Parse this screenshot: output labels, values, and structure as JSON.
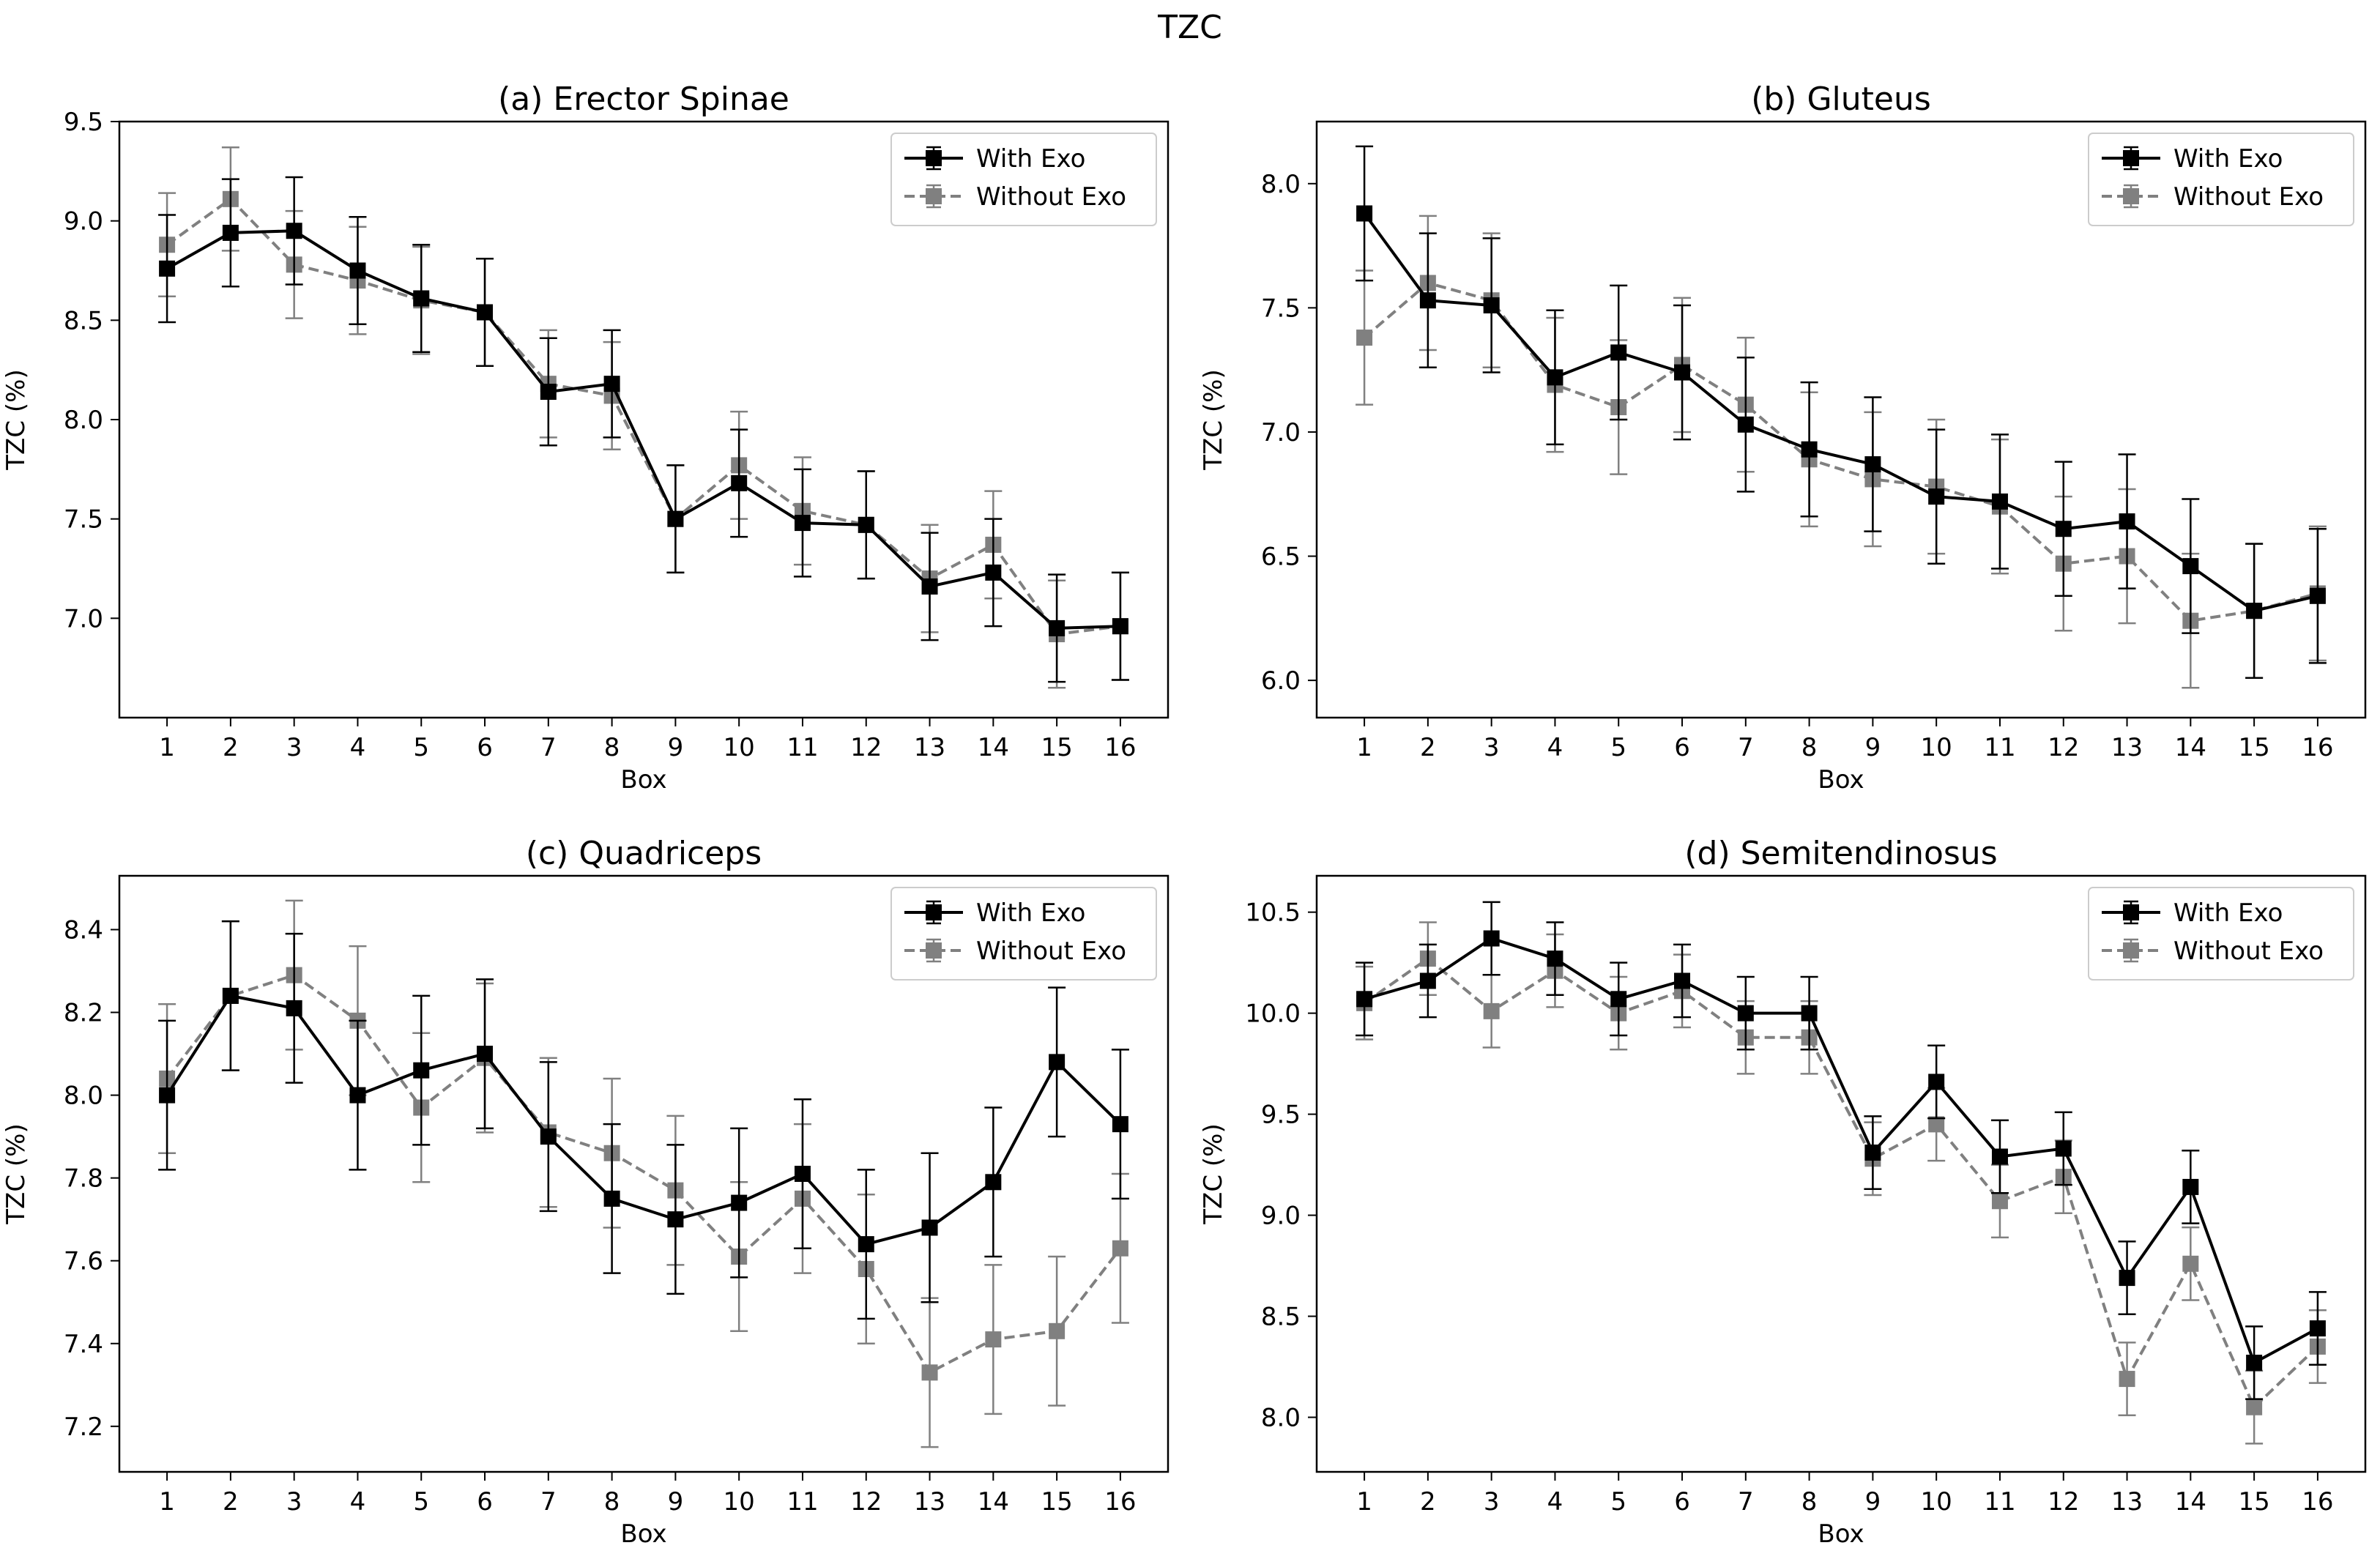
{
  "suptitle": "TZC",
  "colors": {
    "with_exo": "#000000",
    "without_exo": "#808080"
  },
  "chart_data": [
    {
      "type": "line",
      "panel": "(a)",
      "title": "(a)  Erector Spinae",
      "xlabel": "Box",
      "ylabel": "TZC (%)",
      "ylim": [
        6.5,
        9.5
      ],
      "yticks": [
        7.0,
        7.5,
        8.0,
        8.5,
        9.0,
        9.5
      ],
      "ytick_labels": [
        "7.0",
        "7.5",
        "8.0",
        "8.5",
        "9.0",
        "9.5"
      ],
      "x": [
        1,
        2,
        3,
        4,
        5,
        6,
        7,
        8,
        9,
        10,
        11,
        12,
        13,
        14,
        15,
        16
      ],
      "xtick_labels": [
        "1",
        "2",
        "3",
        "4",
        "5",
        "6",
        "7",
        "8",
        "9",
        "10",
        "11",
        "12",
        "13",
        "14",
        "15",
        "16"
      ],
      "legend": "top-right",
      "series": [
        {
          "name": "With Exo",
          "style": "solid",
          "color": "#000000",
          "values": [
            8.76,
            8.94,
            8.95,
            8.75,
            8.61,
            8.54,
            8.14,
            8.18,
            7.5,
            7.68,
            7.48,
            7.47,
            7.16,
            7.23,
            6.95,
            6.96
          ],
          "errors": [
            0.27,
            0.27,
            0.27,
            0.27,
            0.27,
            0.27,
            0.27,
            0.27,
            0.27,
            0.27,
            0.27,
            0.27,
            0.27,
            0.27,
            0.27,
            0.27
          ]
        },
        {
          "name": "Without Exo",
          "style": "dashed",
          "color": "#808080",
          "values": [
            8.88,
            9.11,
            8.78,
            8.7,
            8.6,
            8.54,
            8.18,
            8.12,
            7.5,
            7.77,
            7.54,
            7.47,
            7.2,
            7.37,
            6.92,
            6.96
          ],
          "errors": [
            0.26,
            0.26,
            0.27,
            0.27,
            0.27,
            0.27,
            0.27,
            0.27,
            0.27,
            0.27,
            0.27,
            0.27,
            0.27,
            0.27,
            0.27,
            0.27
          ]
        }
      ]
    },
    {
      "type": "line",
      "panel": "(b)",
      "title": "(b)  Gluteus",
      "xlabel": "Box",
      "ylabel": "TZC (%)",
      "ylim": [
        5.85,
        8.25
      ],
      "yticks": [
        6.0,
        6.5,
        7.0,
        7.5,
        8.0
      ],
      "ytick_labels": [
        "6.0",
        "6.5",
        "7.0",
        "7.5",
        "8.0"
      ],
      "x": [
        1,
        2,
        3,
        4,
        5,
        6,
        7,
        8,
        9,
        10,
        11,
        12,
        13,
        14,
        15,
        16
      ],
      "xtick_labels": [
        "1",
        "2",
        "3",
        "4",
        "5",
        "6",
        "7",
        "8",
        "9",
        "10",
        "11",
        "12",
        "13",
        "14",
        "15",
        "16"
      ],
      "legend": "top-right",
      "series": [
        {
          "name": "With Exo",
          "style": "solid",
          "color": "#000000",
          "values": [
            7.88,
            7.53,
            7.51,
            7.22,
            7.32,
            7.24,
            7.03,
            6.93,
            6.87,
            6.74,
            6.72,
            6.61,
            6.64,
            6.46,
            6.28,
            6.34
          ],
          "errors": [
            0.27,
            0.27,
            0.27,
            0.27,
            0.27,
            0.27,
            0.27,
            0.27,
            0.27,
            0.27,
            0.27,
            0.27,
            0.27,
            0.27,
            0.27,
            0.27
          ]
        },
        {
          "name": "Without Exo",
          "style": "dashed",
          "color": "#808080",
          "values": [
            7.38,
            7.6,
            7.53,
            7.19,
            7.1,
            7.27,
            7.11,
            6.89,
            6.81,
            6.78,
            6.7,
            6.47,
            6.5,
            6.24,
            6.28,
            6.35
          ],
          "errors": [
            0.27,
            0.27,
            0.27,
            0.27,
            0.27,
            0.27,
            0.27,
            0.27,
            0.27,
            0.27,
            0.27,
            0.27,
            0.27,
            0.27,
            0.27,
            0.27
          ]
        }
      ]
    },
    {
      "type": "line",
      "panel": "(c)",
      "title": "(c)  Quadriceps",
      "xlabel": "Box",
      "ylabel": "TZC (%)",
      "ylim": [
        7.09,
        8.53
      ],
      "yticks": [
        7.2,
        7.4,
        7.6,
        7.8,
        8.0,
        8.2,
        8.4
      ],
      "ytick_labels": [
        "7.2",
        "7.4",
        "7.6",
        "7.8",
        "8.0",
        "8.2",
        "8.4"
      ],
      "x": [
        1,
        2,
        3,
        4,
        5,
        6,
        7,
        8,
        9,
        10,
        11,
        12,
        13,
        14,
        15,
        16
      ],
      "xtick_labels": [
        "1",
        "2",
        "3",
        "4",
        "5",
        "6",
        "7",
        "8",
        "9",
        "10",
        "11",
        "12",
        "13",
        "14",
        "15",
        "16"
      ],
      "legend": "top-right",
      "series": [
        {
          "name": "With Exo",
          "style": "solid",
          "color": "#000000",
          "values": [
            8.0,
            8.24,
            8.21,
            8.0,
            8.06,
            8.1,
            7.9,
            7.75,
            7.7,
            7.74,
            7.81,
            7.64,
            7.68,
            7.79,
            8.08,
            7.93
          ],
          "errors": [
            0.18,
            0.18,
            0.18,
            0.18,
            0.18,
            0.18,
            0.18,
            0.18,
            0.18,
            0.18,
            0.18,
            0.18,
            0.18,
            0.18,
            0.18,
            0.18
          ]
        },
        {
          "name": "Without Exo",
          "style": "dashed",
          "color": "#808080",
          "values": [
            8.04,
            8.24,
            8.29,
            8.18,
            7.97,
            8.09,
            7.91,
            7.86,
            7.77,
            7.61,
            7.75,
            7.58,
            7.33,
            7.41,
            7.43,
            7.63
          ],
          "errors": [
            0.18,
            0.18,
            0.18,
            0.18,
            0.18,
            0.18,
            0.18,
            0.18,
            0.18,
            0.18,
            0.18,
            0.18,
            0.18,
            0.18,
            0.18,
            0.18
          ]
        }
      ]
    },
    {
      "type": "line",
      "panel": "(d)",
      "title": "(d)  Semitendinosus",
      "xlabel": "Box",
      "ylabel": "TZC (%)",
      "ylim": [
        7.73,
        10.68
      ],
      "yticks": [
        8.0,
        8.5,
        9.0,
        9.5,
        10.0,
        10.5
      ],
      "ytick_labels": [
        "8.0",
        "8.5",
        "9.0",
        "9.5",
        "10.0",
        "10.5"
      ],
      "x": [
        1,
        2,
        3,
        4,
        5,
        6,
        7,
        8,
        9,
        10,
        11,
        12,
        13,
        14,
        15,
        16
      ],
      "xtick_labels": [
        "1",
        "2",
        "3",
        "4",
        "5",
        "6",
        "7",
        "8",
        "9",
        "10",
        "11",
        "12",
        "13",
        "14",
        "15",
        "16"
      ],
      "legend": "top-right",
      "series": [
        {
          "name": "With Exo",
          "style": "solid",
          "color": "#000000",
          "values": [
            10.07,
            10.16,
            10.37,
            10.27,
            10.07,
            10.16,
            10.0,
            10.0,
            9.31,
            9.66,
            9.29,
            9.33,
            8.69,
            9.14,
            8.27,
            8.44
          ],
          "errors": [
            0.18,
            0.18,
            0.18,
            0.18,
            0.18,
            0.18,
            0.18,
            0.18,
            0.18,
            0.18,
            0.18,
            0.18,
            0.18,
            0.18,
            0.18,
            0.18
          ]
        },
        {
          "name": "Without Exo",
          "style": "dashed",
          "color": "#808080",
          "values": [
            10.05,
            10.27,
            10.01,
            10.21,
            10.0,
            10.11,
            9.88,
            9.88,
            9.28,
            9.45,
            9.07,
            9.19,
            8.19,
            8.76,
            8.05,
            8.35
          ],
          "errors": [
            0.18,
            0.18,
            0.18,
            0.18,
            0.18,
            0.18,
            0.18,
            0.18,
            0.18,
            0.18,
            0.18,
            0.18,
            0.18,
            0.18,
            0.18,
            0.18
          ]
        }
      ]
    }
  ]
}
